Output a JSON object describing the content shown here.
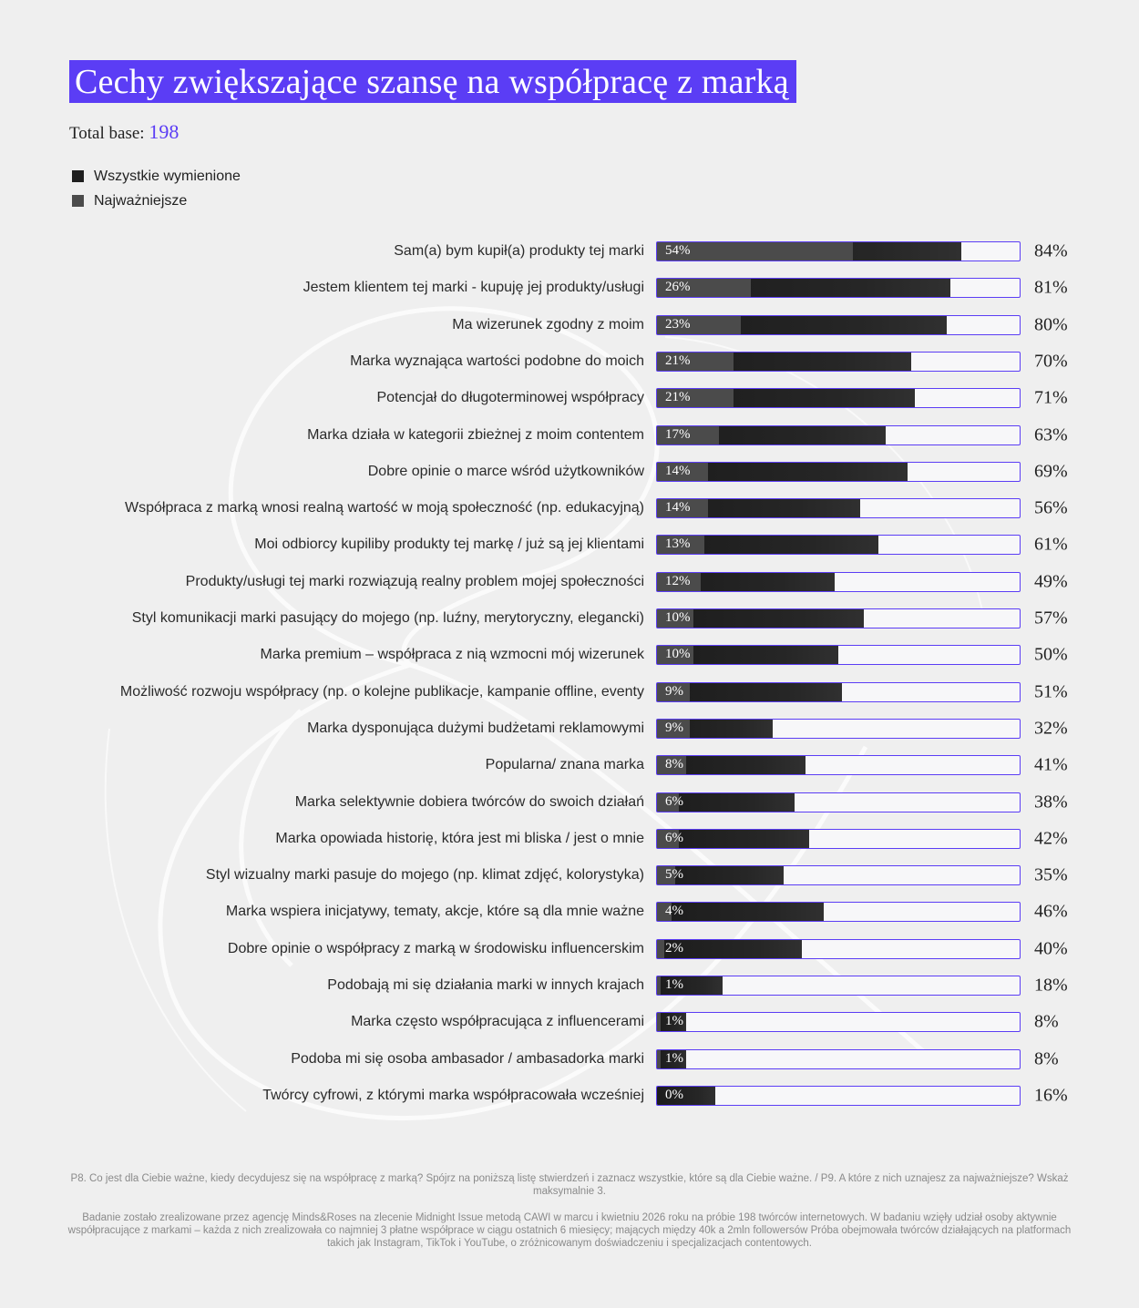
{
  "title": "Cechy zwiększające szansę na współpracę z marką",
  "base": {
    "label": "Total base:",
    "value": "198"
  },
  "legend": [
    {
      "label": "Wszystkie wymienione",
      "color": "#1e1e1e"
    },
    {
      "label": "Najważniejsze",
      "color": "#4b4b4b"
    }
  ],
  "colors": {
    "accent": "#5b3df5",
    "all": "#1e1e1e",
    "top": "#4b4b4b",
    "track": "#f7f7f9"
  },
  "chart_data": {
    "type": "bar",
    "orientation": "horizontal",
    "xlim": [
      0,
      100
    ],
    "unit": "%",
    "categories": [
      "Sam(a) bym kupił(a) produkty tej marki",
      "Jestem klientem tej marki - kupuję jej produkty/usługi",
      "Ma wizerunek zgodny z moim",
      "Marka wyznająca wartości podobne do moich",
      "Potencjał do długoterminowej współpracy",
      "Marka działa w kategorii zbieżnej z moim contentem",
      "Dobre opinie o marce wśród użytkowników",
      "Współpraca z marką wnosi realną wartość w moją społeczność (np. edukacyjną)",
      "Moi odbiorcy kupiliby produkty tej markę / już są jej klientami",
      "Produkty/usługi tej marki rozwiązują realny problem mojej społeczności",
      "Styl komunikacji marki pasujący do mojego (np. luźny, merytoryczny, elegancki)",
      "Marka premium – współpraca z nią wzmocni mój wizerunek",
      "Możliwość rozwoju współpracy (np. o kolejne publikacje, kampanie offline, eventy",
      "Marka dysponująca dużymi budżetami reklamowymi",
      "Popularna/ znana marka",
      "Marka selektywnie dobiera twórców do swoich działań",
      "Marka opowiada historię, która jest mi bliska / jest o mnie",
      "Styl wizualny marki pasuje do mojego (np. klimat zdjęć, kolorystyka)",
      "Marka wspiera inicjatywy, tematy, akcje, które są dla mnie ważne",
      "Dobre opinie o współpracy z marką w środowisku influencerskim",
      "Podobają mi się działania marki w innych krajach",
      "Marka często współpracująca z influencerami",
      "Podoba mi się osoba ambasador / ambasadorka marki",
      "Twórcy cyfrowi, z którymi marka współpracowała wcześniej"
    ],
    "series": [
      {
        "name": "Wszystkie wymienione",
        "values": [
          84,
          81,
          80,
          70,
          71,
          63,
          69,
          56,
          61,
          49,
          57,
          50,
          51,
          32,
          41,
          38,
          42,
          35,
          46,
          40,
          18,
          8,
          8,
          16
        ]
      },
      {
        "name": "Najważniejsze",
        "values": [
          54,
          26,
          23,
          21,
          21,
          17,
          14,
          14,
          13,
          12,
          10,
          10,
          9,
          9,
          8,
          6,
          6,
          5,
          4,
          2,
          1,
          1,
          1,
          0
        ]
      }
    ]
  },
  "footnotes": [
    "P8. Co jest dla Ciebie ważne, kiedy decydujesz się na współpracę z marką? Spójrz na poniższą listę stwierdzeń i zaznacz wszystkie, które są dla Ciebie ważne. / P9. A które z nich uznajesz za najważniejsze? Wskaż maksymalnie 3.",
    "Badanie zostało zrealizowane przez agencję Minds&Roses na zlecenie Midnight Issue metodą CAWI w marcu i kwietniu 2026 roku na próbie 198 twórców internetowych. W badaniu wzięły udział osoby aktywnie współpracujące z markami – każda z nich zrealizowała co najmniej 3 płatne współprace w ciągu ostatnich 6 miesięcy; mających między 40k a 2mln followersów Próba obejmowała twórców działających na platformach takich jak Instagram, TikTok i YouTube, o zróżnicowanym doświadczeniu i specjalizacjach contentowych."
  ]
}
